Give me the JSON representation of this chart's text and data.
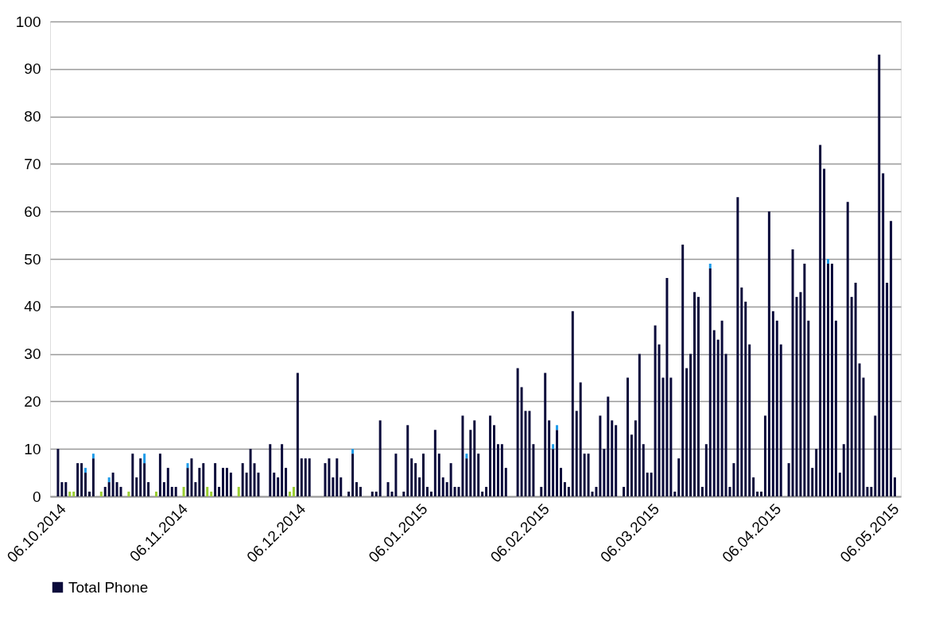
{
  "chart_data": {
    "type": "bar",
    "stacked": true,
    "grid": "y",
    "legend": "bottom",
    "xlim": [
      "2014-10-05",
      "2015-05-07T12:00"
    ],
    "xticks": [
      {
        "value": "2014-10-06",
        "label": "06.10.2014"
      },
      {
        "value": "2014-11-06",
        "label": "06.11.2014"
      },
      {
        "value": "2014-12-06",
        "label": "06.12.2014"
      },
      {
        "value": "2015-01-06",
        "label": "06.01.2015"
      },
      {
        "value": "2015-02-06",
        "label": "06.02.2015"
      },
      {
        "value": "2015-03-06",
        "label": "06.03.2015"
      },
      {
        "value": "2015-04-06",
        "label": "06.04.2015"
      },
      {
        "value": "2015-05-06",
        "label": "06.05.2015"
      }
    ],
    "ylim": [
      0,
      100
    ],
    "yticks": [
      0,
      10,
      20,
      30,
      40,
      50,
      60,
      70,
      80,
      90,
      100
    ],
    "x": [
      "2014-10-06",
      "2014-10-07",
      "2014-10-08",
      "2014-10-09",
      "2014-10-10",
      "2014-10-11",
      "2014-10-12",
      "2014-10-13",
      "2014-10-14",
      "2014-10-15",
      "2014-10-17",
      "2014-10-18",
      "2014-10-19",
      "2014-10-20",
      "2014-10-21",
      "2014-10-22",
      "2014-10-24",
      "2014-10-25",
      "2014-10-26",
      "2014-10-27",
      "2014-10-28",
      "2014-10-29",
      "2014-10-31",
      "2014-11-01",
      "2014-11-02",
      "2014-11-03",
      "2014-11-04",
      "2014-11-05",
      "2014-11-07",
      "2014-11-08",
      "2014-11-09",
      "2014-11-10",
      "2014-11-11",
      "2014-11-12",
      "2014-11-13",
      "2014-11-14",
      "2014-11-15",
      "2014-11-16",
      "2014-11-17",
      "2014-11-18",
      "2014-11-19",
      "2014-11-21",
      "2014-11-22",
      "2014-11-23",
      "2014-11-24",
      "2014-11-25",
      "2014-11-26",
      "2014-11-29",
      "2014-11-30",
      "2014-12-01",
      "2014-12-02",
      "2014-12-03",
      "2014-12-04",
      "2014-12-05",
      "2014-12-06",
      "2014-12-07",
      "2014-12-08",
      "2014-12-09",
      "2014-12-13",
      "2014-12-14",
      "2014-12-15",
      "2014-12-16",
      "2014-12-17",
      "2014-12-19",
      "2014-12-20",
      "2014-12-21",
      "2014-12-22",
      "2014-12-25",
      "2014-12-26",
      "2014-12-27",
      "2014-12-29",
      "2014-12-30",
      "2014-12-31",
      "2015-01-02",
      "2015-01-03",
      "2015-01-04",
      "2015-01-05",
      "2015-01-06",
      "2015-01-07",
      "2015-01-08",
      "2015-01-09",
      "2015-01-10",
      "2015-01-11",
      "2015-01-12",
      "2015-01-13",
      "2015-01-14",
      "2015-01-15",
      "2015-01-16",
      "2015-01-17",
      "2015-01-18",
      "2015-01-19",
      "2015-01-20",
      "2015-01-21",
      "2015-01-22",
      "2015-01-23",
      "2015-01-24",
      "2015-01-25",
      "2015-01-26",
      "2015-01-27",
      "2015-01-28",
      "2015-01-31",
      "2015-02-01",
      "2015-02-02",
      "2015-02-03",
      "2015-02-04",
      "2015-02-06",
      "2015-02-07",
      "2015-02-08",
      "2015-02-09",
      "2015-02-10",
      "2015-02-11",
      "2015-02-12",
      "2015-02-13",
      "2015-02-14",
      "2015-02-15",
      "2015-02-16",
      "2015-02-17",
      "2015-02-18",
      "2015-02-19",
      "2015-02-20",
      "2015-02-21",
      "2015-02-22",
      "2015-02-23",
      "2015-02-24",
      "2015-02-25",
      "2015-02-27",
      "2015-02-28",
      "2015-03-01",
      "2015-03-02",
      "2015-03-03",
      "2015-03-04",
      "2015-03-05",
      "2015-03-06",
      "2015-03-07",
      "2015-03-08",
      "2015-03-09",
      "2015-03-10",
      "2015-03-11",
      "2015-03-12",
      "2015-03-13",
      "2015-03-14",
      "2015-03-15",
      "2015-03-16",
      "2015-03-17",
      "2015-03-18",
      "2015-03-19",
      "2015-03-20",
      "2015-03-21",
      "2015-03-22",
      "2015-03-23",
      "2015-03-24",
      "2015-03-25",
      "2015-03-26",
      "2015-03-27",
      "2015-03-28",
      "2015-03-29",
      "2015-03-30",
      "2015-03-31",
      "2015-04-01",
      "2015-04-02",
      "2015-04-03",
      "2015-04-04",
      "2015-04-05",
      "2015-04-06",
      "2015-04-07",
      "2015-04-08",
      "2015-04-10",
      "2015-04-11",
      "2015-04-12",
      "2015-04-13",
      "2015-04-14",
      "2015-04-15",
      "2015-04-16",
      "2015-04-17",
      "2015-04-18",
      "2015-04-19",
      "2015-04-20",
      "2015-04-21",
      "2015-04-22",
      "2015-04-23",
      "2015-04-24",
      "2015-04-25",
      "2015-04-26",
      "2015-04-27",
      "2015-04-28",
      "2015-04-29",
      "2015-04-30",
      "2015-05-01",
      "2015-05-02",
      "2015-05-03",
      "2015-05-04",
      "2015-05-05",
      "2015-05-06",
      "2015-05-07"
    ],
    "series": [
      {
        "name": "Total Phone",
        "color": "#0b0b3b",
        "values": [
          10,
          3,
          3,
          null,
          null,
          7,
          7,
          5,
          1,
          8,
          null,
          2,
          3,
          5,
          3,
          2,
          null,
          9,
          4,
          8,
          7,
          3,
          null,
          9,
          3,
          6,
          2,
          2,
          null,
          6,
          8,
          3,
          6,
          7,
          null,
          null,
          7,
          2,
          6,
          6,
          5,
          null,
          7,
          5,
          10,
          7,
          5,
          11,
          5,
          4,
          11,
          6,
          null,
          null,
          26,
          8,
          8,
          8,
          7,
          8,
          4,
          8,
          4,
          1,
          9,
          3,
          2,
          1,
          1,
          16,
          3,
          1,
          9,
          1,
          15,
          8,
          7,
          4,
          9,
          2,
          1,
          14,
          9,
          4,
          3,
          7,
          2,
          2,
          17,
          8,
          14,
          16,
          9,
          1,
          2,
          17,
          15,
          11,
          11,
          6,
          27,
          23,
          18,
          18,
          11,
          2,
          26,
          16,
          10,
          14,
          6,
          3,
          2,
          39,
          18,
          24,
          9,
          9,
          1,
          2,
          17,
          10,
          21,
          16,
          15,
          2,
          25,
          13,
          16,
          30,
          11,
          5,
          5,
          36,
          32,
          25,
          46,
          25,
          1,
          8,
          53,
          27,
          30,
          43,
          42,
          2,
          11,
          48,
          35,
          33,
          37,
          30,
          2,
          7,
          63,
          44,
          41,
          32,
          4,
          1,
          1,
          17,
          60,
          39,
          37,
          32,
          7,
          52,
          42,
          43,
          49,
          37,
          6,
          10,
          74,
          69,
          49,
          49,
          37,
          5,
          11,
          62,
          42,
          45,
          28,
          25,
          2,
          2,
          17,
          93,
          68,
          45,
          58,
          4
        ]
      },
      {
        "color": "#1e9be9",
        "values": [
          null,
          null,
          null,
          null,
          null,
          null,
          null,
          1,
          null,
          1,
          null,
          null,
          1,
          null,
          null,
          null,
          null,
          null,
          null,
          null,
          2,
          null,
          null,
          null,
          null,
          null,
          null,
          null,
          null,
          1,
          null,
          null,
          null,
          null,
          null,
          null,
          null,
          null,
          null,
          null,
          null,
          null,
          null,
          null,
          null,
          null,
          null,
          null,
          null,
          null,
          null,
          null,
          null,
          null,
          null,
          null,
          null,
          null,
          null,
          null,
          null,
          null,
          null,
          null,
          1,
          null,
          null,
          null,
          null,
          null,
          null,
          null,
          null,
          null,
          null,
          null,
          null,
          null,
          null,
          null,
          null,
          null,
          null,
          null,
          null,
          null,
          null,
          null,
          null,
          1,
          null,
          null,
          null,
          null,
          null,
          null,
          null,
          null,
          null,
          null,
          null,
          null,
          null,
          null,
          null,
          null,
          null,
          null,
          1,
          1,
          null,
          null,
          null,
          null,
          null,
          null,
          null,
          null,
          null,
          null,
          null,
          null,
          null,
          null,
          null,
          null,
          null,
          null,
          null,
          null,
          null,
          null,
          null,
          null,
          null,
          null,
          null,
          null,
          null,
          null,
          null,
          null,
          null,
          null,
          null,
          null,
          null,
          1,
          null,
          null,
          null,
          null,
          null,
          null,
          null,
          null,
          null,
          null,
          null,
          null,
          null,
          null,
          null,
          null,
          null,
          null,
          null,
          null,
          null,
          null,
          null,
          null,
          null,
          null,
          null,
          null,
          1,
          null,
          null,
          null,
          null,
          null,
          null,
          null,
          null,
          null,
          null,
          null,
          null,
          null,
          null,
          null,
          null,
          null
        ]
      },
      {
        "color": "#9acd32",
        "values": [
          null,
          null,
          null,
          1,
          1,
          null,
          null,
          null,
          null,
          null,
          1,
          null,
          null,
          null,
          null,
          null,
          1,
          null,
          null,
          null,
          null,
          null,
          1,
          null,
          null,
          null,
          null,
          null,
          2,
          null,
          null,
          null,
          null,
          null,
          2,
          1,
          null,
          null,
          null,
          null,
          null,
          2,
          null,
          null,
          null,
          null,
          null,
          null,
          null,
          null,
          null,
          null,
          1,
          2,
          null,
          null,
          null,
          null,
          null,
          null,
          null,
          null,
          null,
          null,
          null,
          null,
          null,
          null,
          null,
          null,
          null,
          null,
          null,
          null,
          null,
          null,
          null,
          null,
          null,
          null,
          null,
          null,
          null,
          null,
          null,
          null,
          null,
          null,
          null,
          null,
          null,
          null,
          null,
          null,
          null,
          null,
          null,
          null,
          null,
          null,
          null,
          null,
          null,
          null,
          null,
          null,
          null,
          null,
          null,
          null,
          null,
          null,
          null,
          null,
          null,
          null,
          null,
          null,
          null,
          null,
          null,
          null,
          null,
          null,
          null,
          null,
          null,
          null,
          null,
          null,
          null,
          null,
          null,
          null,
          null,
          null,
          null,
          null,
          null,
          null,
          null,
          null,
          null,
          null,
          null,
          null,
          null,
          null,
          null,
          null,
          null,
          null,
          null,
          null,
          null,
          null,
          null,
          null,
          null,
          null,
          null,
          null,
          null,
          null,
          null,
          null,
          null,
          null,
          null,
          null,
          null,
          null,
          null,
          null,
          null,
          null,
          null,
          null,
          null,
          null,
          null,
          null,
          null,
          null,
          null,
          null,
          null,
          null,
          null,
          null,
          null,
          null,
          null,
          null
        ]
      }
    ]
  }
}
